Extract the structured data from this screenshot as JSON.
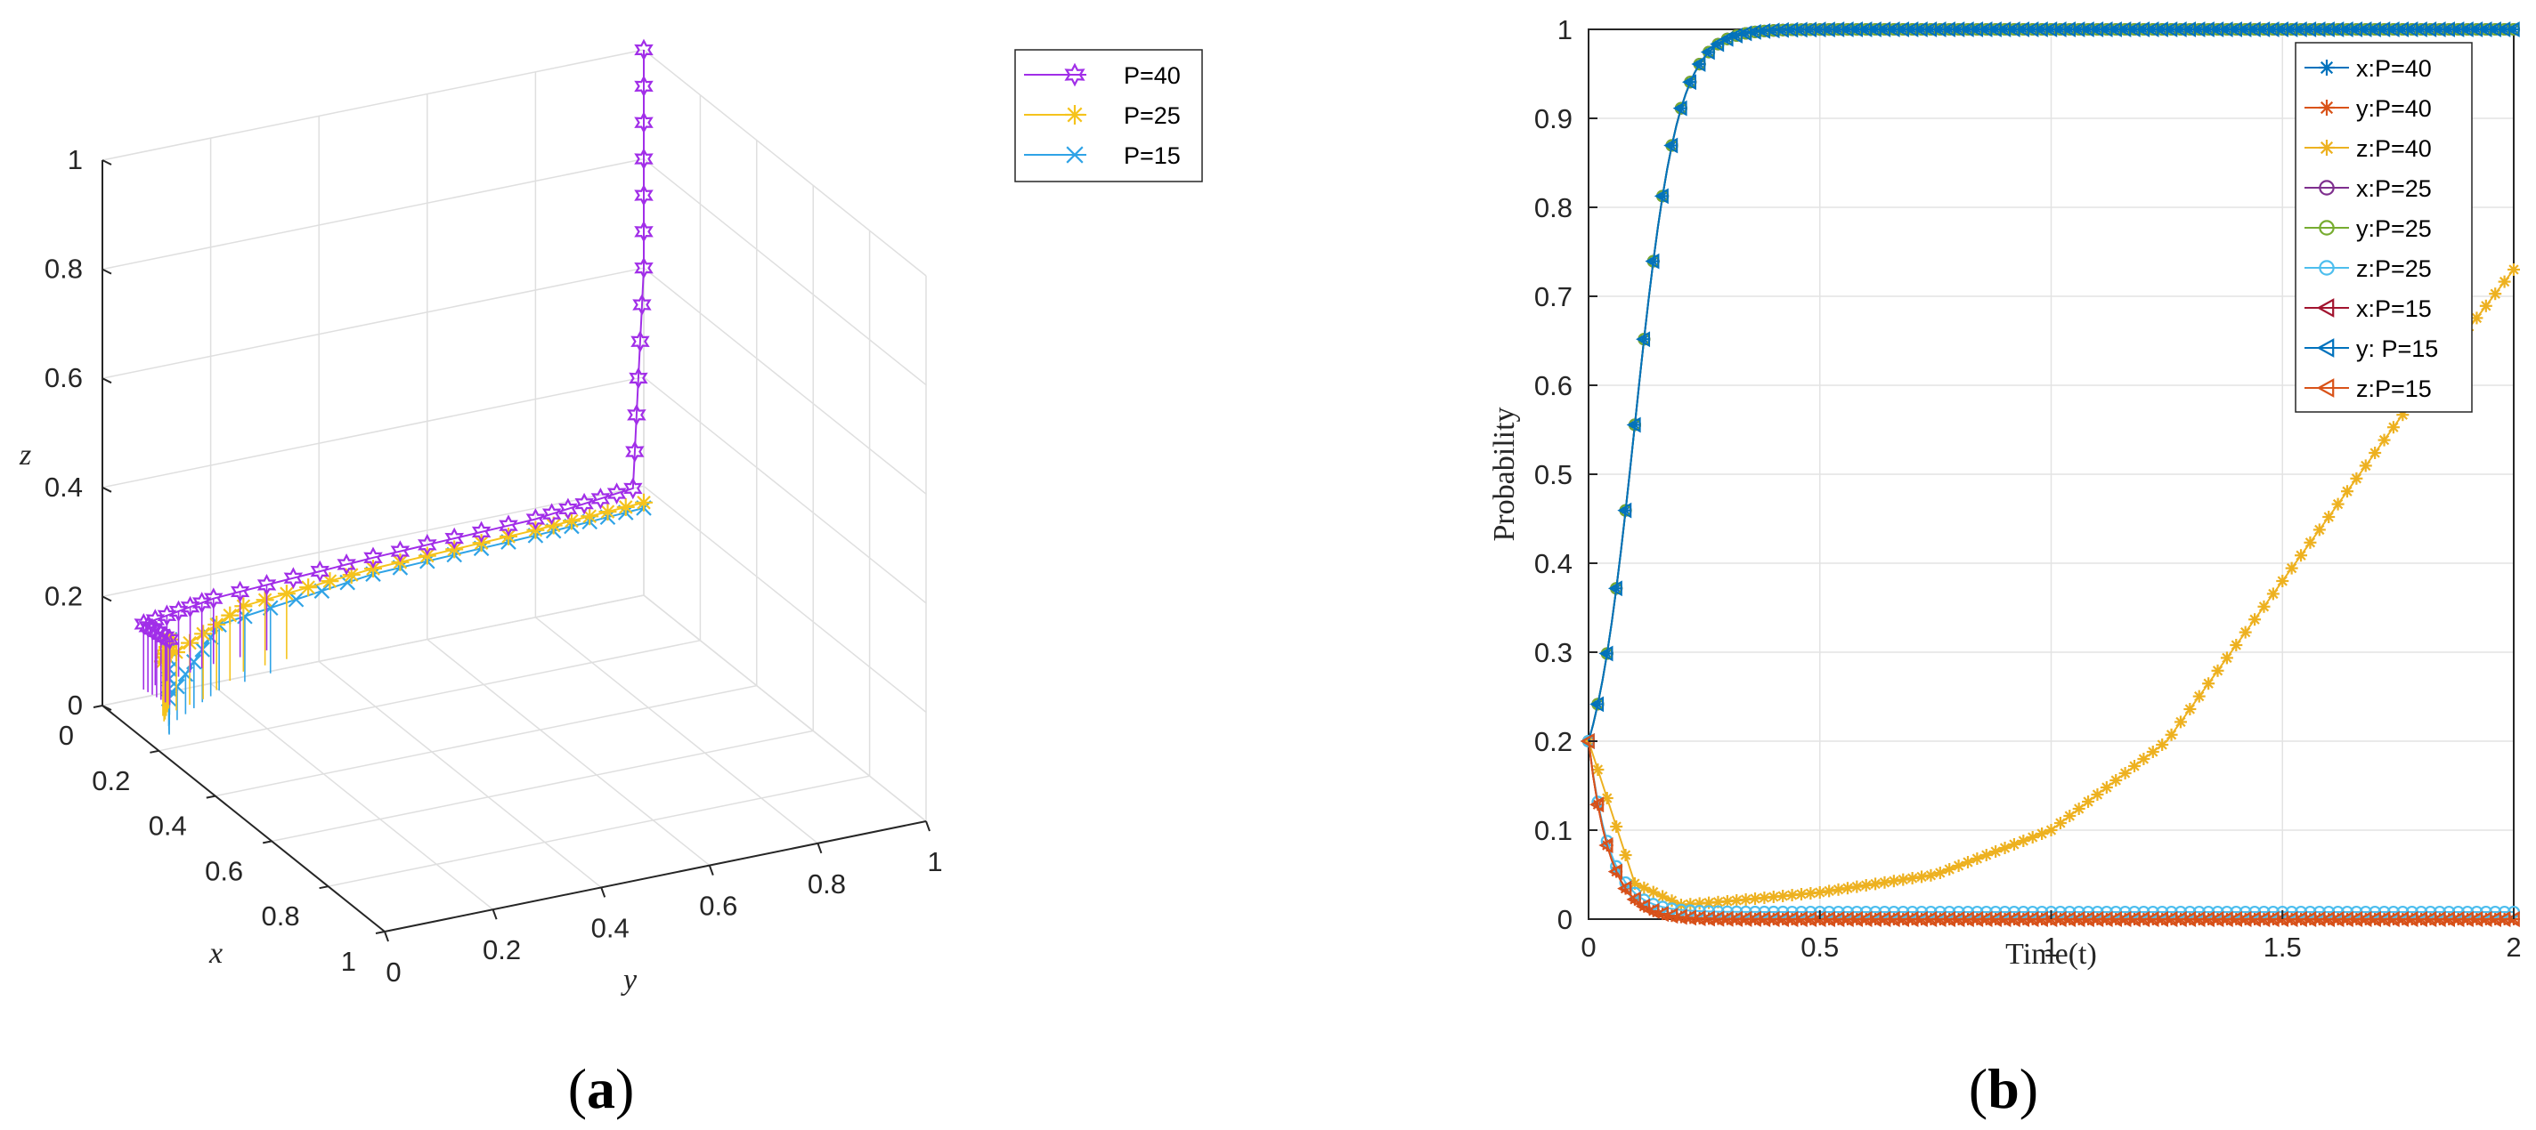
{
  "chart_data": [
    {
      "type": "line",
      "panel_label_parts": [
        "(",
        "a",
        ")"
      ],
      "title": "",
      "xlabel": "x",
      "ylabel": "y",
      "zlabel": "z",
      "xlim": [
        0,
        1
      ],
      "ylim": [
        0,
        1
      ],
      "zlim": [
        0,
        1
      ],
      "x_ticks": [
        "0",
        "0.2",
        "0.4",
        "0.6",
        "0.8",
        "1"
      ],
      "y_ticks": [
        "0",
        "0.2",
        "0.4",
        "0.6",
        "0.8",
        "1"
      ],
      "z_ticks": [
        "0",
        "0.2",
        "0.4",
        "0.6",
        "0.8",
        "1"
      ],
      "grid": true,
      "legend_position": "top-right",
      "series": [
        {
          "name": "P=40",
          "color": "#a12ee8",
          "marker": "hexagram",
          "points": [
            [
              0.2,
              0.02,
              0.2
            ],
            [
              0.05,
              0.05,
              0.16
            ],
            [
              0.01,
              0.2,
              0.16
            ],
            [
              0,
              0.5,
              0.17
            ],
            [
              0,
              0.8,
              0.18
            ],
            [
              0,
              0.98,
              0.2
            ],
            [
              0,
              1,
              0.6
            ],
            [
              0,
              1,
              1
            ]
          ]
        },
        {
          "name": "P=25",
          "color": "#f5c31c",
          "marker": "asterisk",
          "points": [
            [
              0.2,
              0.02,
              0.2
            ],
            [
              0.08,
              0.07,
              0.1
            ],
            [
              0.02,
              0.25,
              0.14
            ],
            [
              0,
              0.5,
              0.15
            ],
            [
              0,
              0.8,
              0.16
            ],
            [
              0,
              1,
              0.17
            ]
          ]
        },
        {
          "name": "P=15",
          "color": "#2fa3e6",
          "marker": "x",
          "points": [
            [
              0.2,
              0.02,
              0.2
            ],
            [
              0.12,
              0.06,
              0.05
            ],
            [
              0.03,
              0.2,
              0.12
            ],
            [
              0,
              0.5,
              0.14
            ],
            [
              0,
              0.8,
              0.15
            ],
            [
              0,
              1,
              0.16
            ]
          ]
        }
      ]
    },
    {
      "type": "line",
      "panel_label_parts": [
        "(",
        "b",
        ")"
      ],
      "title": "",
      "xlabel": "Time(t)",
      "ylabel": "Probability",
      "xlim": [
        0,
        2
      ],
      "ylim": [
        0,
        1
      ],
      "x_ticks": [
        "0",
        "0.5",
        "1",
        "1.5",
        "2"
      ],
      "y_ticks": [
        "0",
        "0.1",
        "0.2",
        "0.3",
        "0.4",
        "0.5",
        "0.6",
        "0.7",
        "0.8",
        "0.9",
        "1"
      ],
      "grid": true,
      "legend_position": "top-right",
      "series": [
        {
          "name": "x:P=40",
          "color": "#0072bd",
          "marker": "asterisk",
          "shape": "rise",
          "x0": 0.2
        },
        {
          "name": "y:P=40",
          "color": "#d95319",
          "marker": "asterisk",
          "shape": "decay",
          "x0": 0.2,
          "floor": 0.0
        },
        {
          "name": "z:P=40",
          "color": "#edb120",
          "marker": "asterisk",
          "shape": "slow",
          "points": [
            [
              0,
              0.2
            ],
            [
              0.1,
              0.04
            ],
            [
              0.2,
              0.016
            ],
            [
              0.3,
              0.02
            ],
            [
              0.5,
              0.03
            ],
            [
              0.75,
              0.05
            ],
            [
              1.0,
              0.1
            ],
            [
              1.25,
              0.2
            ],
            [
              1.5,
              0.38
            ],
            [
              1.75,
              0.56
            ],
            [
              2.0,
              0.73
            ]
          ]
        },
        {
          "name": "x:P=25",
          "color": "#7e2f8e",
          "marker": "circle",
          "shape": "rise",
          "x0": 0.2
        },
        {
          "name": "y:P=25",
          "color": "#77ac30",
          "marker": "circle",
          "shape": "rise",
          "x0": 0.2
        },
        {
          "name": "z:P=25",
          "color": "#4dbeee",
          "marker": "circle",
          "shape": "decay",
          "x0": 0.2,
          "floor": 0.008
        },
        {
          "name": "x:P=15",
          "color": "#a2142f",
          "marker": "triangle-left",
          "shape": "decay",
          "x0": 0.2,
          "floor": 0.0
        },
        {
          "name": "y: P=15",
          "color": "#0072bd",
          "marker": "triangle-left",
          "shape": "rise",
          "x0": 0.2
        },
        {
          "name": "z:P=15",
          "color": "#d95319",
          "marker": "triangle-left",
          "shape": "decay",
          "x0": 0.2,
          "floor": 0.0
        }
      ]
    }
  ]
}
